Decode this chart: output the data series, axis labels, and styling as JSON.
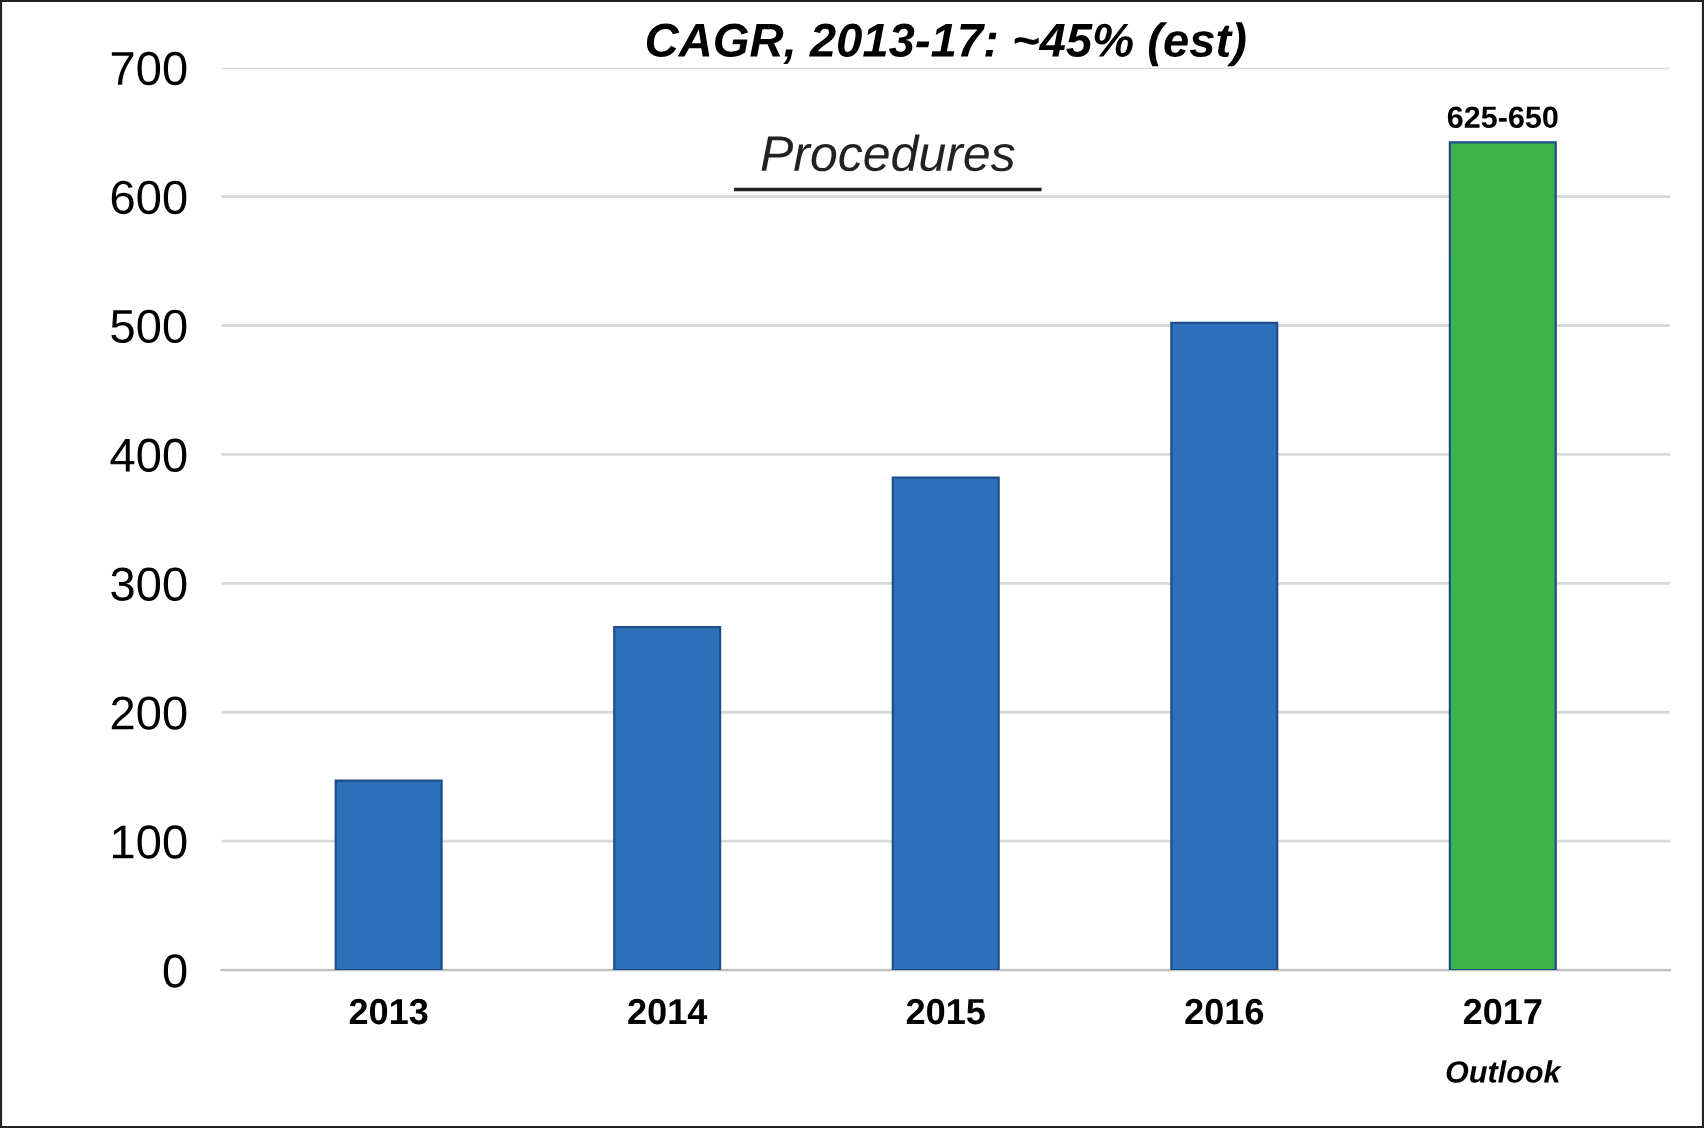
{
  "chart_data": {
    "type": "bar",
    "title": "CAGR, 2013-17: ~45% (est)",
    "subtitle": "Procedures",
    "categories": [
      "2013",
      "2014",
      "2015",
      "2016",
      "2017"
    ],
    "values": [
      147,
      266,
      382,
      502,
      642
    ],
    "colors": [
      "#2e6fba",
      "#2e6fba",
      "#2e6fba",
      "#2e6fba",
      "#3cb44a"
    ],
    "value_labels": [
      null,
      null,
      null,
      null,
      "625-650"
    ],
    "annotations": [
      "Outlook"
    ],
    "ylim": [
      0,
      700
    ],
    "yticks": [
      0,
      100,
      200,
      300,
      400,
      500,
      600,
      700
    ],
    "grid": "y"
  }
}
